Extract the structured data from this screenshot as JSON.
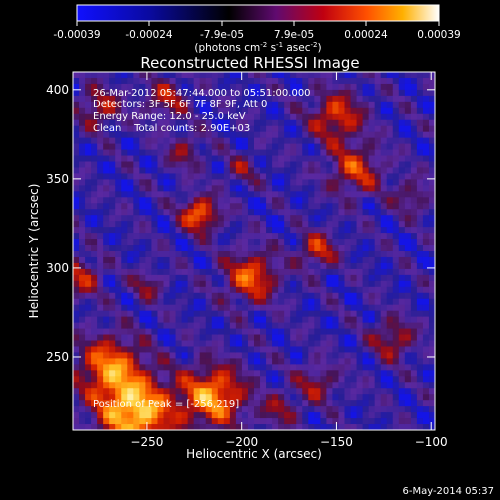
{
  "colorbar": {
    "ticks": [
      "-0.00039",
      "-0.00024",
      "-7.9e-05",
      "7.9e-05",
      "0.00024",
      "0.00039"
    ],
    "units_main": "(photons cm",
    "units_exp1": "-2",
    "units_mid": " s",
    "units_exp2": "-1",
    "units_end": " asec",
    "units_exp3": "-2",
    "units_close": ")",
    "colormap": [
      "#0000ff",
      "#0a0080",
      "#000000",
      "#5a0a5a",
      "#b00000",
      "#ff4000",
      "#ffa000",
      "#ffffff"
    ]
  },
  "title": "Reconstructed RHESSI Image",
  "info": {
    "time_range": "26-Mar-2012 05:47:44.000 to 05:51:00.000",
    "detectors": "Detectors: 3F 5F 6F 7F 8F 9F, Att 0",
    "energy": "Energy Range: 12.0 - 25.0 keV",
    "clean": "Clean    Total counts: 2.90E+03",
    "peak": "Position of Peak = [-256,219]"
  },
  "axes": {
    "xlabel": "Heliocentric X (arcsec)",
    "ylabel": "Heliocentric Y (arcsec)",
    "xlim": [
      -289,
      -98
    ],
    "ylim": [
      209,
      410
    ],
    "xticks": [
      -250,
      -200,
      -150,
      -100
    ],
    "yticks": [
      250,
      300,
      350,
      400
    ]
  },
  "footer": {
    "date": "6-May-2014 05:37"
  }
}
